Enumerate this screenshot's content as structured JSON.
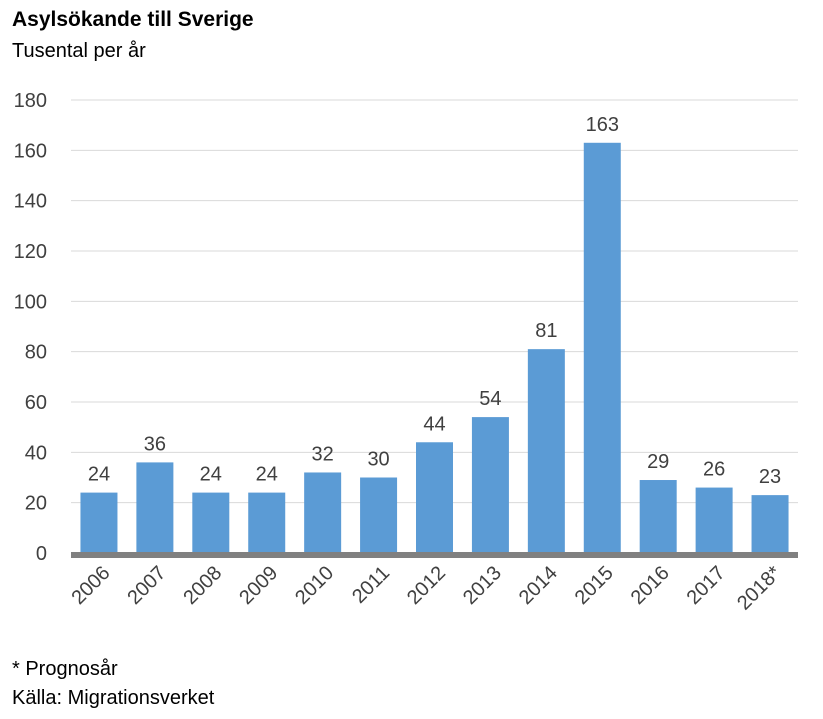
{
  "title": "Asylsökande till Sverige",
  "subtitle": "Tusental per år",
  "footnotes": [
    "* Prognosår",
    "Källa: Migrationsverket"
  ],
  "colors": {
    "bar": "#5b9bd5",
    "grid": "#d9d9d9",
    "axis": "#808080",
    "text": "#404040"
  },
  "chart_data": {
    "type": "bar",
    "title": "Asylsökande till Sverige",
    "subtitle": "Tusental per år",
    "categories": [
      "2006",
      "2007",
      "2008",
      "2009",
      "2010",
      "2011",
      "2012",
      "2013",
      "2014",
      "2015",
      "2016",
      "2017",
      "2018*"
    ],
    "values": [
      24,
      36,
      24,
      24,
      32,
      30,
      44,
      54,
      81,
      163,
      29,
      26,
      23
    ],
    "data_labels": [
      "24",
      "36",
      "24",
      "24",
      "32",
      "30",
      "44",
      "54",
      "81",
      "163",
      "29",
      "26",
      "23"
    ],
    "ylim": [
      0,
      180
    ],
    "yticks": [
      0,
      20,
      40,
      60,
      80,
      100,
      120,
      140,
      160,
      180
    ],
    "grid": true,
    "legend": "none"
  }
}
